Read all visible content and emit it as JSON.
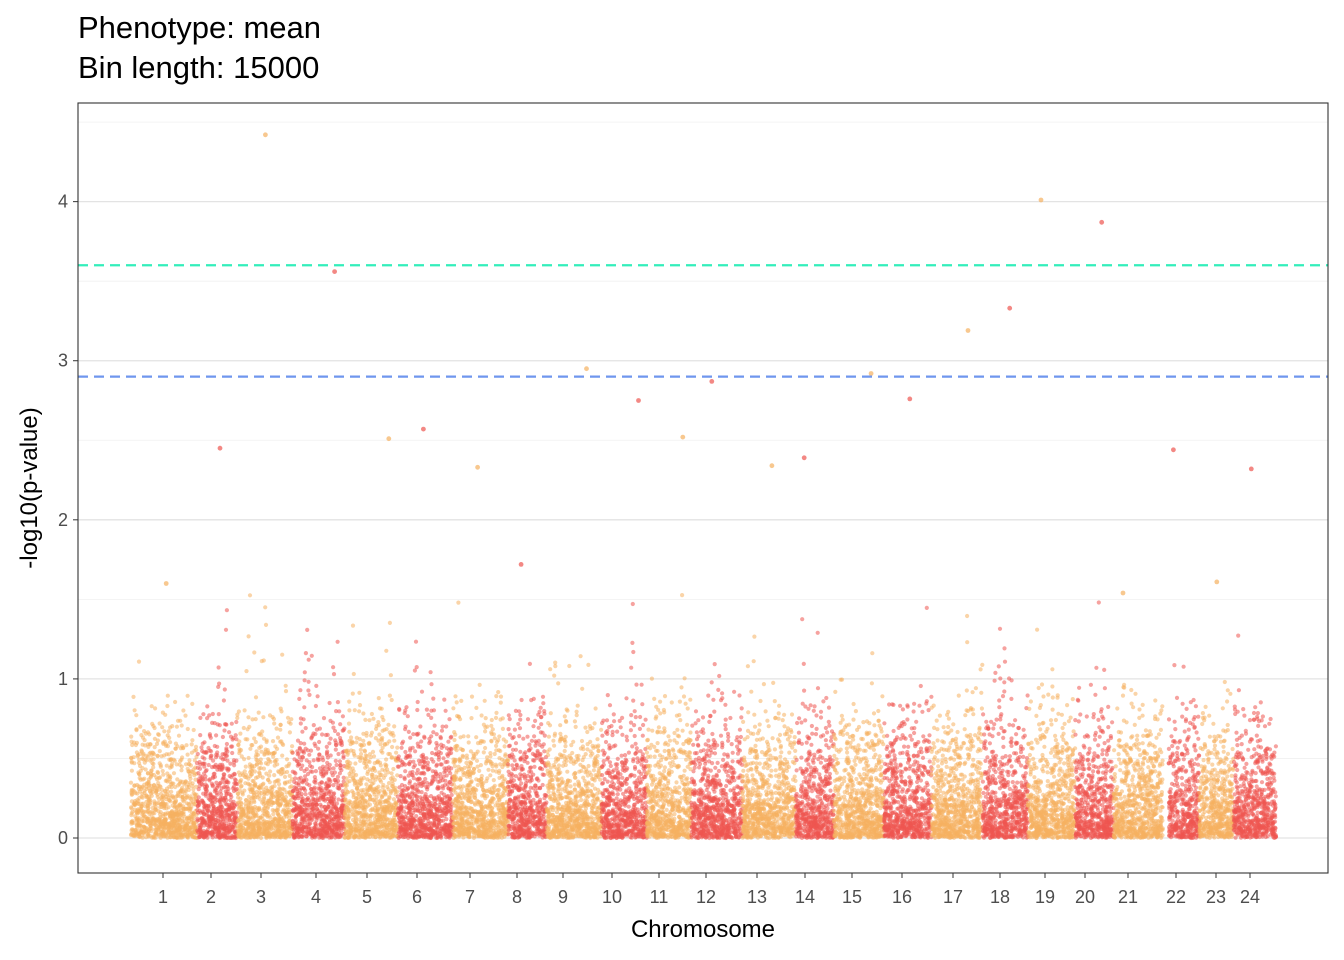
{
  "chart_data": {
    "type": "scatter",
    "title": "Phenotype: mean",
    "subtitle": "Bin length: 15000",
    "xlabel": "Chromosome",
    "ylabel": "-log10(p-value)",
    "ylim": [
      -0.22,
      4.62
    ],
    "y_ticks": [
      0,
      1,
      2,
      3,
      4
    ],
    "grid": true,
    "colors": {
      "odd": "#F5B060",
      "even": "#EE5650"
    },
    "thresholds": [
      {
        "value": 3.6,
        "color": "#33EEBB"
      },
      {
        "value": 2.9,
        "color": "#6F96EE"
      }
    ],
    "chromosomes": [
      {
        "label": "1",
        "max": 1.6
      },
      {
        "label": "2",
        "max": 2.45
      },
      {
        "label": "3",
        "max": 4.42
      },
      {
        "label": "4",
        "max": 3.56
      },
      {
        "label": "5",
        "max": 2.51
      },
      {
        "label": "6",
        "max": 2.57
      },
      {
        "label": "7",
        "max": 2.33
      },
      {
        "label": "8",
        "max": 1.72
      },
      {
        "label": "9",
        "max": 2.95
      },
      {
        "label": "10",
        "max": 2.75
      },
      {
        "label": "11",
        "max": 2.52
      },
      {
        "label": "12",
        "max": 2.87
      },
      {
        "label": "13",
        "max": 2.34
      },
      {
        "label": "14",
        "max": 2.39
      },
      {
        "label": "15",
        "max": 2.92
      },
      {
        "label": "16",
        "max": 2.76
      },
      {
        "label": "17",
        "max": 3.19
      },
      {
        "label": "18",
        "max": 3.33
      },
      {
        "label": "19",
        "max": 4.01
      },
      {
        "label": "20",
        "max": 3.87
      },
      {
        "label": "21",
        "max": 1.54
      },
      {
        "label": "22",
        "max": 2.44
      },
      {
        "label": "23",
        "max": 1.61
      },
      {
        "label": "24",
        "max": 2.32
      }
    ]
  }
}
